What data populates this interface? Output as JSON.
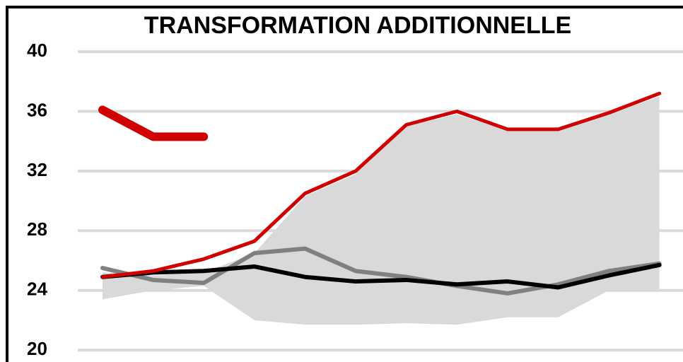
{
  "chart_data": {
    "type": "line",
    "title": "TRANSFORMATION ADDITIONNELLE",
    "categories": [
      null,
      null,
      null,
      null,
      null,
      null,
      null,
      null,
      null,
      null,
      null,
      null
    ],
    "ylim": [
      19.2,
      41
    ],
    "yticks": [
      20,
      24,
      28,
      32,
      36,
      40
    ],
    "grid": true,
    "band": {
      "color": "#d9d9d9",
      "upper": [
        25.2,
        25.0,
        25.2,
        26.5,
        30.3,
        31.8,
        35.0,
        35.8,
        34.7,
        34.7,
        35.8,
        37.0
      ],
      "lower": [
        23.4,
        24.0,
        24.3,
        22.0,
        21.7,
        21.7,
        21.8,
        21.7,
        22.2,
        22.2,
        24.0,
        24.0
      ]
    },
    "series": [
      {
        "color": "#808080",
        "width": 6,
        "values": [
          25.5,
          24.7,
          24.5,
          26.5,
          26.8,
          25.3,
          24.9,
          24.3,
          23.8,
          24.4,
          25.3,
          25.8
        ]
      },
      {
        "color": "#000000",
        "width": 6,
        "values": [
          24.9,
          25.2,
          25.3,
          25.6,
          24.9,
          24.6,
          24.7,
          24.4,
          24.6,
          24.2,
          25.0,
          25.7
        ]
      },
      {
        "color": "#d00000",
        "width": 5,
        "values": [
          24.9,
          25.3,
          26.1,
          27.3,
          30.5,
          32.0,
          35.1,
          36.0,
          34.8,
          34.8,
          35.9,
          37.2
        ]
      },
      {
        "color": "#d00000",
        "width": 12,
        "values": [
          36.1,
          34.3,
          34.3,
          null,
          null,
          null,
          null,
          null,
          null,
          null,
          null,
          null
        ]
      }
    ]
  }
}
